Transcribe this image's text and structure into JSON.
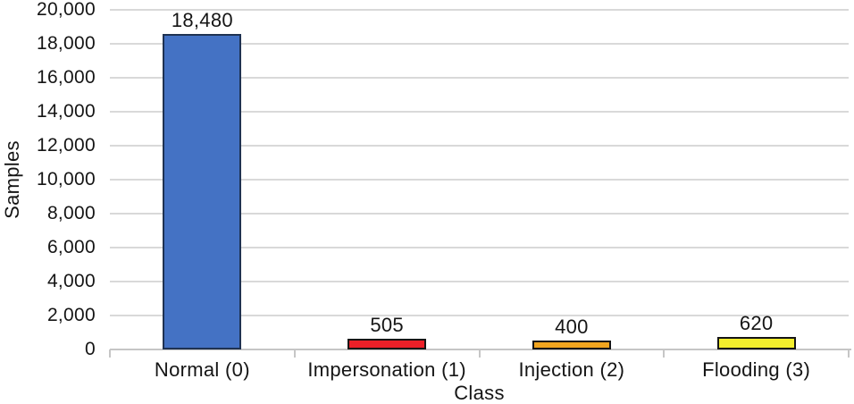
{
  "chart_data": {
    "type": "bar",
    "title": "",
    "xlabel": "Class",
    "ylabel": "Samples",
    "categories": [
      "Normal (0)",
      "Impersonation (1)",
      "Injection (2)",
      "Flooding (3)"
    ],
    "values": [
      18480,
      505,
      400,
      620
    ],
    "data_labels": [
      "18,480",
      "505",
      "400",
      "620"
    ],
    "ylim": [
      0,
      20000
    ],
    "ytick_step": 2000,
    "yticks": [
      {
        "value": 0,
        "label": "0"
      },
      {
        "value": 2000,
        "label": "2,000"
      },
      {
        "value": 4000,
        "label": "4,000"
      },
      {
        "value": 6000,
        "label": "6,000"
      },
      {
        "value": 8000,
        "label": "8,000"
      },
      {
        "value": 10000,
        "label": "10,000"
      },
      {
        "value": 12000,
        "label": "12,000"
      },
      {
        "value": 14000,
        "label": "14,000"
      },
      {
        "value": 16000,
        "label": "16,000"
      },
      {
        "value": 18000,
        "label": "18,000"
      },
      {
        "value": 20000,
        "label": "20,000"
      }
    ],
    "grid": true,
    "legend_position": "none",
    "bar_colors": [
      "#4472c4",
      "#ec2028",
      "#f2a51f",
      "#f3ee2d"
    ],
    "bar_border_colors": [
      "#1f3252",
      "#151515",
      "#151515",
      "#151515"
    ]
  },
  "colors": {
    "gridline": "#d9d9d9",
    "axis_line": "#c6c6c6",
    "text": "#151515",
    "background": "#ffffff"
  }
}
